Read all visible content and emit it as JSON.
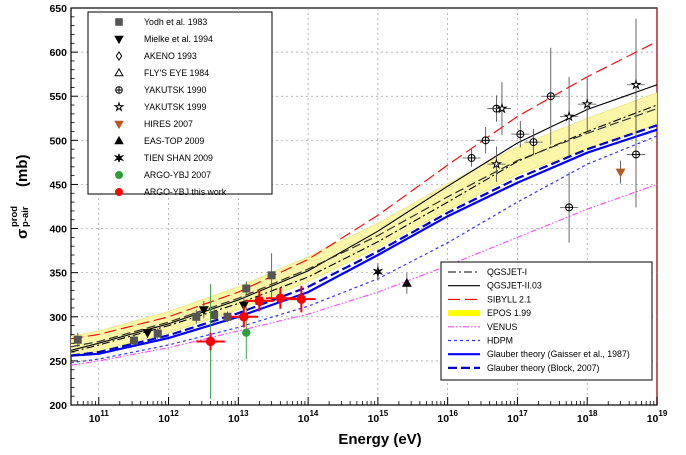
{
  "chart_data": {
    "type": "scatter",
    "title": "",
    "xlabel": "Energy (eV)",
    "ylabel": {
      "sigma": "σ",
      "sup": "prod",
      "sub": "p-air",
      "unit": "(mb)"
    },
    "xscale": "log",
    "xlim": [
      40000000000.0,
      1e+19
    ],
    "ylim": [
      200,
      650
    ],
    "grid": true,
    "y_ticks": [
      200,
      250,
      300,
      350,
      400,
      450,
      500,
      550,
      600,
      650
    ],
    "x_ticks": [
      {
        "base": "10",
        "exp": "11",
        "value": 100000000000.0
      },
      {
        "base": "10",
        "exp": "12",
        "value": 1000000000000.0
      },
      {
        "base": "10",
        "exp": "13",
        "value": 10000000000000.0
      },
      {
        "base": "10",
        "exp": "14",
        "value": 100000000000000.0
      },
      {
        "base": "10",
        "exp": "15",
        "value": 1000000000000000.0
      },
      {
        "base": "10",
        "exp": "16",
        "value": 1e+16
      },
      {
        "base": "10",
        "exp": "17",
        "value": 1e+17
      },
      {
        "base": "10",
        "exp": "18",
        "value": 1e+18
      },
      {
        "base": "10",
        "exp": "19",
        "value": 1e+19
      }
    ],
    "data_legend_placement": "top-left",
    "model_legend_placement": "bottom-right",
    "experiments": [
      {
        "name": "Yodh et al. 1983",
        "marker": "square",
        "color": "#555555",
        "points": [
          [
            50000000000.0,
            274,
            8
          ],
          [
            320000000000.0,
            273,
            6
          ],
          [
            700000000000.0,
            281,
            6
          ],
          [
            2500000000000.0,
            300,
            8
          ],
          [
            4500000000000.0,
            302,
            10
          ],
          [
            7000000000000.0,
            300,
            6
          ],
          [
            13000000000000.0,
            332,
            8
          ],
          [
            20000000000000.0,
            318,
            10
          ],
          [
            30000000000000.0,
            347,
            25
          ]
        ]
      },
      {
        "name": "Mielke et al. 1994",
        "marker": "tri-down",
        "color": "#000000",
        "points": [
          [
            500000000000.0,
            282,
            6
          ],
          [
            3200000000000.0,
            308,
            10
          ],
          [
            12000000000000.0,
            313,
            10
          ]
        ]
      },
      {
        "name": "AKENO 1993",
        "marker": "diamond-open",
        "color": "#000000",
        "points": []
      },
      {
        "name": "FLY'S EYE 1984",
        "marker": "tri-open",
        "color": "#000000",
        "points": []
      },
      {
        "name": "YAKUTSK 1990",
        "marker": "circle-cross",
        "color": "#000000",
        "points": [
          [
            2.2e+16,
            480,
            10
          ],
          [
            3.5e+16,
            500,
            15
          ],
          [
            5e+16,
            536,
            15
          ],
          [
            1.1e+17,
            507,
            15
          ],
          [
            1.7e+17,
            498,
            15
          ],
          [
            3e+17,
            550,
            55
          ],
          [
            5.5e+17,
            424,
            40
          ],
          [
            5e+18,
            484,
            60
          ]
        ]
      },
      {
        "name": "YAKUTSK 1999",
        "marker": "star-open",
        "color": "#000000",
        "points": [
          [
            5e+16,
            473,
            20
          ],
          [
            6e+16,
            536,
            30
          ],
          [
            5.5e+17,
            527,
            45
          ],
          [
            1e+18,
            541,
            30
          ],
          [
            5e+18,
            563,
            75
          ]
        ]
      },
      {
        "name": "HIRES 2007",
        "marker": "tri-down",
        "color": "#b85a1b",
        "points": [
          [
            3e+18,
            464,
            13
          ]
        ]
      },
      {
        "name": "EAS-TOP 2009",
        "marker": "tri-up",
        "color": "#000000",
        "points": [
          [
            2600000000000000.0,
            338,
            12
          ]
        ]
      },
      {
        "name": "TIEN SHAN 2009",
        "marker": "star6",
        "color": "#000000",
        "points": [
          [
            1000000000000000.0,
            351,
            10
          ]
        ]
      },
      {
        "name": "ARGO-YBJ 2007",
        "marker": "circle",
        "color": "#2e9e3c",
        "points": [
          [
            4000000000000.0,
            272,
            65
          ],
          [
            13000000000000.0,
            282,
            30
          ]
        ]
      },
      {
        "name": "ARGO-YBJ this work",
        "marker": "circle",
        "color": "#ff0000",
        "points": [
          [
            4000000000000.0,
            272,
            10
          ],
          [
            12000000000000.0,
            300,
            12
          ],
          [
            20000000000000.0,
            318,
            12
          ],
          [
            40000000000000.0,
            321,
            12
          ],
          [
            80000000000000.0,
            320,
            15
          ]
        ]
      }
    ],
    "models": [
      {
        "name": "QGSJET-I",
        "color": "#000000",
        "style": "dashdot",
        "x": [
          40000000000.0,
          100000000000.0,
          1000000000000.0,
          10000000000000.0,
          100000000000000.0,
          1000000000000000.0,
          1e+16,
          1e+17,
          1e+18,
          1e+19
        ],
        "y": [
          260,
          268,
          290,
          315,
          345,
          385,
          430,
          476,
          510,
          540
        ]
      },
      {
        "name": "QGSJET-II.03",
        "color": "#000000",
        "style": "solid",
        "x": [
          40000000000.0,
          100000000000.0,
          1000000000000.0,
          10000000000000.0,
          100000000000000.0,
          1000000000000000.0,
          1e+16,
          1e+17,
          1e+18,
          1e+19
        ],
        "y": [
          262,
          270,
          292,
          319,
          352,
          397,
          448,
          497,
          535,
          563
        ]
      },
      {
        "name": "SIBYLL 2.1",
        "color": "#ff0000",
        "style": "longdash",
        "x": [
          40000000000.0,
          100000000000.0,
          1000000000000.0,
          10000000000000.0,
          100000000000000.0,
          1000000000000000.0,
          1e+16,
          1e+17,
          1e+18,
          1e+19
        ],
        "y": [
          275,
          280,
          300,
          328,
          365,
          415,
          472,
          527,
          572,
          612
        ]
      },
      {
        "name": "EPOS 1.99",
        "color": "#ffff00",
        "style": "band",
        "x": [
          40000000000.0,
          100000000000.0,
          1000000000000.0,
          10000000000000.0,
          100000000000000.0,
          1000000000000000.0,
          1e+16,
          1e+17,
          1e+18,
          1e+19
        ],
        "y": [
          266,
          272,
          294,
          321,
          354,
          392,
          436,
          477,
          508,
          536
        ],
        "band": [
          {
            "lo": 255,
            "hi": 278
          },
          {
            "lo": 261,
            "hi": 284
          },
          {
            "lo": 282,
            "hi": 306
          },
          {
            "lo": 308,
            "hi": 334
          },
          {
            "lo": 340,
            "hi": 368
          },
          {
            "lo": 378,
            "hi": 406
          },
          {
            "lo": 421,
            "hi": 451
          },
          {
            "lo": 461,
            "hi": 493
          },
          {
            "lo": 491,
            "hi": 525
          },
          {
            "lo": 518,
            "hi": 554
          }
        ]
      },
      {
        "name": "VENUS",
        "color": "#ff44ff",
        "style": "dashdotdot",
        "x": [
          40000000000.0,
          100000000000.0,
          1000000000000.0,
          10000000000000.0,
          100000000000000.0,
          1000000000000000.0,
          1e+16,
          1e+17,
          1e+18,
          1e+19
        ],
        "y": [
          245,
          250,
          265,
          284,
          303,
          328,
          358,
          390,
          422,
          450
        ]
      },
      {
        "name": "HDPM",
        "color": "#3333ff",
        "style": "dotted",
        "x": [
          40000000000.0,
          100000000000.0,
          1000000000000.0,
          10000000000000.0,
          100000000000000.0,
          1000000000000000.0,
          1e+16,
          1e+17,
          1e+18,
          1e+19
        ],
        "y": [
          248,
          252,
          268,
          288,
          312,
          343,
          384,
          430,
          473,
          505
        ]
      },
      {
        "name": "Glauber theory (Gaisser et al., 1987)",
        "color": "#0000ff",
        "style": "solidthick",
        "x": [
          40000000000.0,
          100000000000.0,
          1000000000000.0,
          10000000000000.0,
          100000000000000.0,
          1000000000000000.0,
          1e+16,
          1e+17,
          1e+18,
          1e+19
        ],
        "y": [
          256,
          258,
          276,
          300,
          328,
          370,
          414,
          452,
          486,
          512
        ]
      },
      {
        "name": "Glauber theory (Block, 2007)",
        "color": "#0000cc",
        "style": "dashthick",
        "x": [
          40000000000.0,
          100000000000.0,
          1000000000000.0,
          10000000000000.0,
          100000000000000.0,
          1000000000000000.0,
          1e+16,
          1e+17,
          1e+18,
          1e+19
        ],
        "y": [
          256,
          260,
          279,
          304,
          334,
          374,
          418,
          457,
          490,
          517
        ]
      }
    ]
  }
}
